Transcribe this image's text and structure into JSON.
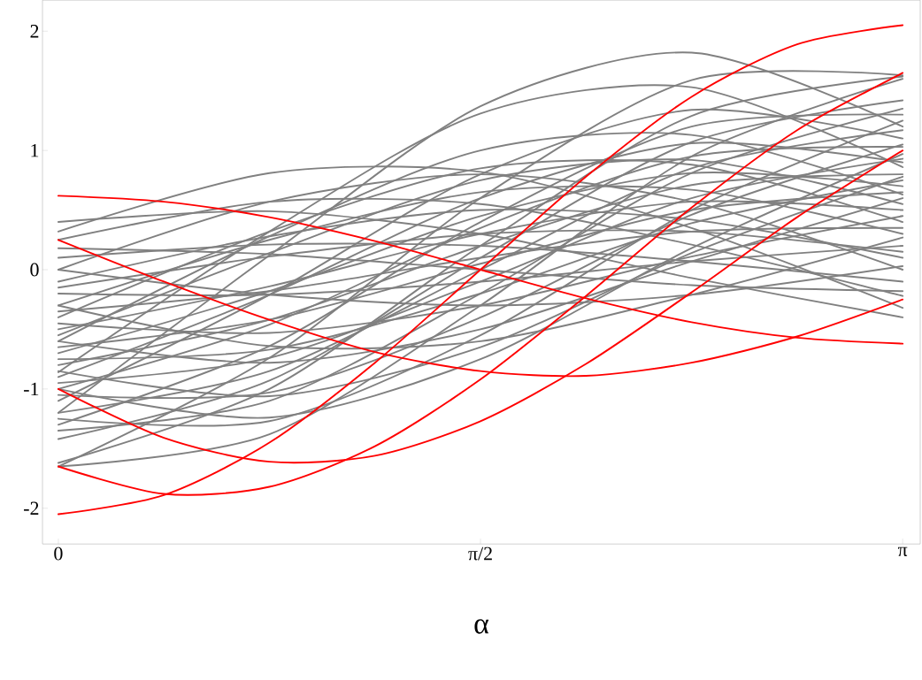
{
  "chart_data": {
    "type": "line",
    "xlabel": "α",
    "marker": "none",
    "line_style": "solid",
    "grid": false,
    "xlim": [
      -0.059,
      3.207
    ],
    "ylim": [
      -2.3,
      2.26
    ],
    "xticks": [
      0,
      {
        "value": 1.5708,
        "label": "π/2"
      },
      {
        "value": 3.1416,
        "label": "π"
      }
    ],
    "yticks": [
      -2,
      -1,
      0,
      1,
      2
    ],
    "x": [
      0,
      0.7854,
      1.5708,
      2.3562,
      3.1416
    ],
    "series": [
      {
        "color": "#808080",
        "values": [
          -1.2,
          0.12,
          1.37,
          1.82,
          1.2
        ]
      },
      {
        "color": "#808080",
        "values": [
          -0.86,
          0.32,
          1.31,
          1.53,
          0.86
        ]
      },
      {
        "color": "#808080",
        "values": [
          0.32,
          0.81,
          0.82,
          0.35,
          -0.32
        ]
      },
      {
        "color": "#808080",
        "values": [
          -1.65,
          -0.74,
          0.6,
          1.59,
          1.63
        ]
      },
      {
        "color": "#808080",
        "values": [
          -1.62,
          -1.0,
          0.2,
          1.29,
          1.62
        ]
      },
      {
        "color": "#808080",
        "values": [
          0.4,
          0.49,
          0.3,
          -0.07,
          -0.4
        ]
      },
      {
        "color": "#808080",
        "values": [
          0.25,
          0.57,
          0.55,
          0.21,
          -0.22
        ]
      },
      {
        "color": "#808080",
        "values": [
          0.18,
          0.13,
          0,
          -0.13,
          -0.18
        ]
      },
      {
        "color": "#808080",
        "values": [
          0.1,
          0.21,
          0.2,
          0.07,
          -0.1
        ]
      },
      {
        "color": "#808080",
        "values": [
          0,
          0.57,
          0.8,
          0.57,
          0
        ]
      },
      {
        "color": "#808080",
        "values": [
          -0.1,
          0.28,
          0.5,
          0.42,
          0.1
        ]
      },
      {
        "color": "#808080",
        "values": [
          -0.2,
          -0.21,
          -0.1,
          0.07,
          0.2
        ]
      },
      {
        "color": "#808080",
        "values": [
          -0.3,
          0.25,
          0.65,
          0.67,
          0.3
        ]
      },
      {
        "color": "#808080",
        "values": [
          -0.35,
          -0.18,
          0.1,
          0.32,
          0.35
        ]
      },
      {
        "color": "#808080",
        "values": [
          -0.45,
          -0.53,
          -0.3,
          0.11,
          0.45
        ]
      },
      {
        "color": "#808080",
        "values": [
          -0.5,
          -0.14,
          0.3,
          0.57,
          0.5
        ]
      },
      {
        "color": "#808080",
        "values": [
          -0.55,
          0.14,
          0.75,
          0.92,
          0.55
        ]
      },
      {
        "color": "#808080",
        "values": [
          -0.6,
          -0.78,
          -0.5,
          0.07,
          0.6
        ]
      },
      {
        "color": "#808080",
        "values": [
          -0.65,
          -0.42,
          0.05,
          0.5,
          0.65
        ]
      },
      {
        "color": "#808080",
        "values": [
          -0.7,
          -0.18,
          0.45,
          0.81,
          0.7
        ]
      },
      {
        "color": "#808080",
        "values": [
          -0.75,
          -0.67,
          -0.2,
          0.39,
          0.75
        ]
      },
      {
        "color": "#808080",
        "values": [
          -0.8,
          -0.42,
          0.2,
          0.71,
          0.8
        ]
      },
      {
        "color": "#808080",
        "values": [
          -0.85,
          -1.06,
          -0.65,
          0.14,
          0.78
        ]
      },
      {
        "color": "#808080",
        "values": [
          -0.9,
          -0.21,
          0.6,
          1.06,
          0.9
        ]
      },
      {
        "color": "#808080",
        "values": [
          -0.95,
          -0.74,
          -0.1,
          0.6,
          0.93
        ]
      },
      {
        "color": "#808080",
        "values": [
          -1.0,
          -0.46,
          0.35,
          0.95,
          1.03
        ]
      },
      {
        "color": "#808080",
        "values": [
          -1.05,
          -1.03,
          -0.4,
          0.46,
          1.05
        ]
      },
      {
        "color": "#808080",
        "values": [
          -1.1,
          -0.21,
          0.8,
          1.34,
          1.1
        ]
      },
      {
        "color": "#808080",
        "values": [
          -1.2,
          -0.85,
          0,
          0.85,
          1.17
        ]
      },
      {
        "color": "#808080",
        "values": [
          -1.25,
          -1.27,
          -0.55,
          0.5,
          1.25
        ]
      },
      {
        "color": "#808080",
        "values": [
          -1.3,
          -0.64,
          0.4,
          1.2,
          1.3
        ]
      },
      {
        "color": "#808080",
        "values": [
          -1.35,
          -1.1,
          -0.2,
          0.81,
          1.35
        ]
      },
      {
        "color": "#808080",
        "values": [
          -1.42,
          -0.93,
          0.1,
          1.07,
          1.42
        ]
      },
      {
        "color": "#808080",
        "values": [
          -1.65,
          -1.38,
          -0.3,
          0.95,
          1.6
        ]
      },
      {
        "color": "#808080",
        "values": [
          -0.4,
          0.32,
          0.85,
          0.88,
          0.4
        ]
      },
      {
        "color": "#808080",
        "values": [
          -0.15,
          0.11,
          0.3,
          0.32,
          0.15
        ]
      },
      {
        "color": "#808080",
        "values": [
          0,
          -0.21,
          -0.3,
          -0.21,
          0.03
        ]
      },
      {
        "color": "#808080",
        "values": [
          -0.6,
          0.28,
          1.0,
          1.13,
          0.63
        ]
      },
      {
        "color": "#808080",
        "values": [
          -0.3,
          -0.64,
          -0.6,
          -0.21,
          0.27
        ]
      },
      {
        "color": "#808080",
        "values": [
          -1.0,
          -1.24,
          -0.75,
          0.18,
          0.97
        ]
      },
      {
        "color": "#ff0000",
        "x": [
          0,
          0.3927,
          0.7854,
          1.1781,
          1.5708,
          1.9635,
          2.3562,
          2.7489,
          3.1416
        ],
        "values": [
          0.62,
          0.57,
          0.44,
          0.24,
          0,
          -0.24,
          -0.44,
          -0.57,
          -0.62
        ]
      },
      {
        "color": "#ff0000",
        "x": [
          0,
          0.3927,
          0.7854,
          1.1781,
          1.5708,
          1.9635,
          2.3562,
          2.7489,
          3.1416
        ],
        "values": [
          -2.05,
          -1.89,
          -1.45,
          -0.78,
          0,
          0.78,
          1.45,
          1.89,
          2.05
        ]
      },
      {
        "color": "#ff0000",
        "x": [
          0,
          0.3927,
          0.7854,
          1.1781,
          1.5708,
          1.9635,
          2.3562,
          2.7489,
          3.1416
        ],
        "values": [
          0.25,
          -0.1,
          -0.42,
          -0.69,
          -0.85,
          -0.89,
          -0.78,
          -0.56,
          -0.25
        ]
      },
      {
        "color": "#ff0000",
        "x": [
          0,
          0.3927,
          0.7854,
          1.1781,
          1.5708,
          1.9635,
          2.3562,
          2.7489,
          3.1416
        ],
        "values": [
          -1.0,
          -1.41,
          -1.61,
          -1.56,
          -1.27,
          -0.79,
          -0.19,
          0.44,
          1.0
        ]
      },
      {
        "color": "#ff0000",
        "x": [
          0,
          0.3927,
          0.7854,
          1.1781,
          1.5708,
          1.9635,
          2.3562,
          2.7489,
          3.1416
        ],
        "values": [
          -1.65,
          -1.88,
          -1.82,
          -1.48,
          -0.92,
          -0.22,
          0.52,
          1.17,
          1.65
        ]
      }
    ]
  }
}
